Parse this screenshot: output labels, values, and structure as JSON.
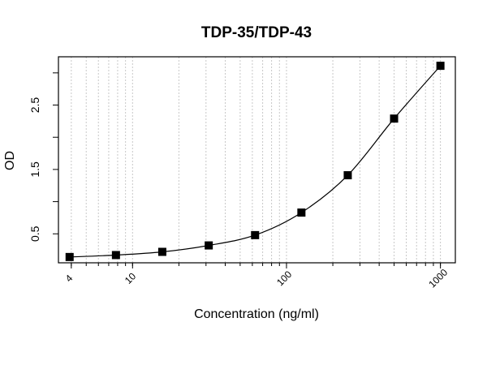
{
  "chart_data": {
    "type": "scatter",
    "title": "TDP-35/TDP-43",
    "xlabel": "Concentration (ng/ml)",
    "ylabel": "OD",
    "x_scale": "log",
    "xlim": [
      3.3,
      1250
    ],
    "ylim": [
      0.05,
      3.25
    ],
    "x_tick_labels": [
      "4",
      "10",
      "100",
      "1000"
    ],
    "x_tick_values": [
      4,
      10,
      100,
      1000
    ],
    "y_tick_labels": [
      "0.5",
      "1.5",
      "2.5"
    ],
    "y_tick_values": [
      0.5,
      1.5,
      2.5
    ],
    "y_minor_ticks": [
      1,
      2,
      3
    ],
    "grid": "vertical dotted at log decades",
    "series": [
      {
        "marker": "filled-square",
        "points": [
          {
            "x": 3.9,
            "y": 0.14
          },
          {
            "x": 7.8,
            "y": 0.17
          },
          {
            "x": 15.6,
            "y": 0.22
          },
          {
            "x": 31.25,
            "y": 0.32
          },
          {
            "x": 62.5,
            "y": 0.48
          },
          {
            "x": 125,
            "y": 0.83
          },
          {
            "x": 250,
            "y": 1.41
          },
          {
            "x": 500,
            "y": 2.29
          },
          {
            "x": 1000,
            "y": 3.11
          }
        ]
      }
    ]
  }
}
